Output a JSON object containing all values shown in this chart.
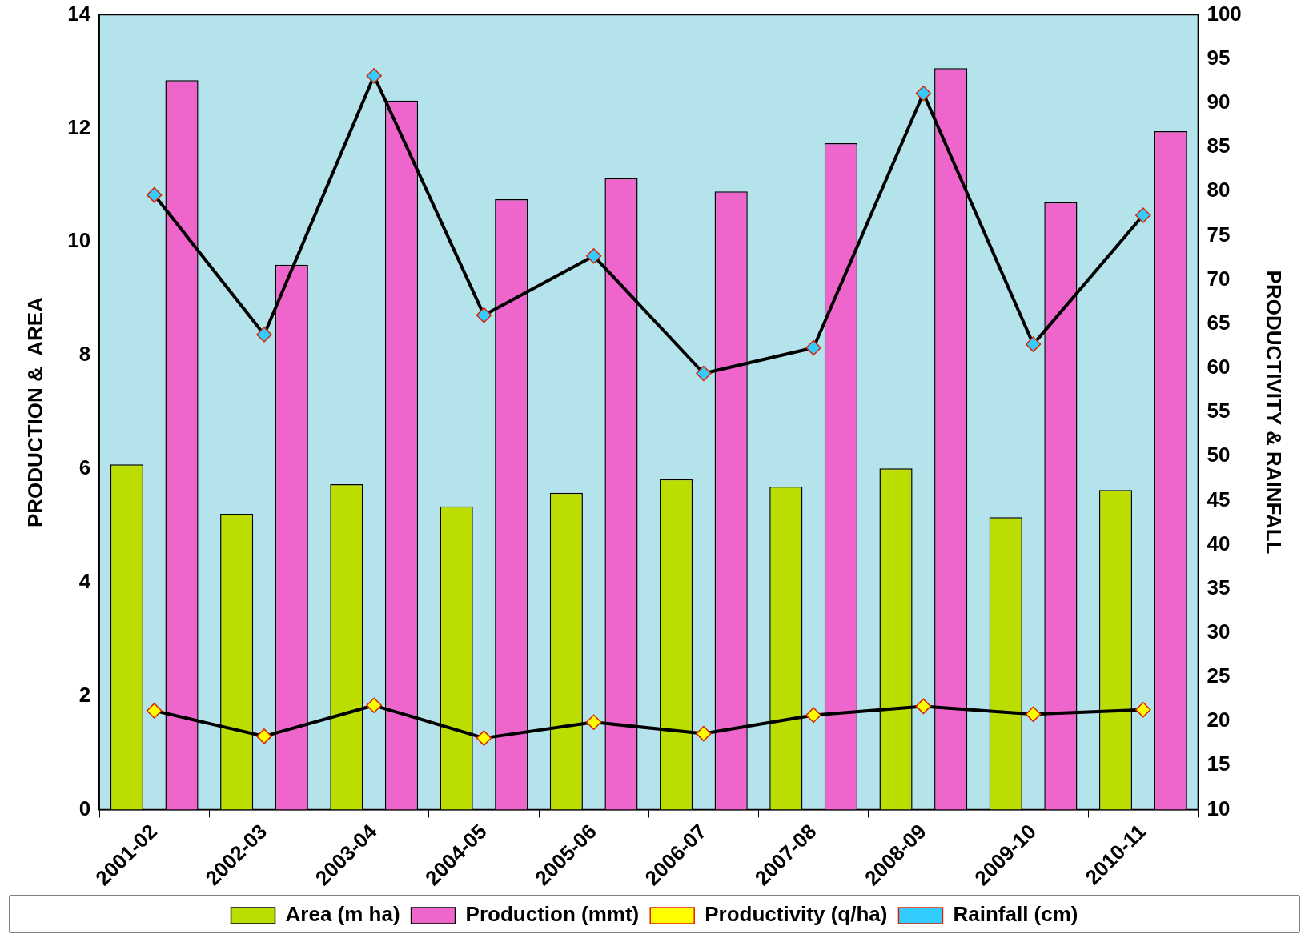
{
  "chart_data": {
    "type": "bar",
    "ylabel": "PRODUCTION &  AREA",
    "y2label": "PRODUCTIVITY & RAINFALL",
    "categories": [
      "2001-02",
      "2002-03",
      "2003-04",
      "2004-05",
      "2005-06",
      "2006-07",
      "2007-08",
      "2008-09",
      "2009-10",
      "2010-11"
    ],
    "series": [
      {
        "name": "Area (m ha)",
        "color": "#bbdd00",
        "values": [
          6.08,
          5.21,
          5.73,
          5.34,
          5.58,
          5.82,
          5.69,
          6.01,
          5.15,
          5.63
        ]
      },
      {
        "name": "Production (mmt)",
        "color": "#ee66cc",
        "values": [
          12.85,
          9.6,
          12.49,
          10.75,
          11.12,
          10.89,
          11.74,
          13.06,
          10.7,
          11.95
        ]
      },
      {
        "name": "Productivity (q/ha)",
        "type": "line",
        "axis": "y2",
        "color": "#ffff00",
        "marker": "diamond",
        "values": [
          21.2,
          18.3,
          21.8,
          18.1,
          19.9,
          18.6,
          20.7,
          21.7,
          20.8,
          21.3
        ]
      },
      {
        "name": "Rainfall (cm)",
        "type": "line",
        "axis": "y2",
        "color": "#33ccff",
        "marker": "diamond",
        "values": [
          79.6,
          63.8,
          93.1,
          66.0,
          72.7,
          59.4,
          62.3,
          91.1,
          62.7,
          77.3
        ]
      }
    ],
    "ylim": [
      0,
      14
    ],
    "yticks": [
      0,
      2,
      4,
      6,
      8,
      10,
      12,
      14
    ],
    "y2lim": [
      10,
      100
    ],
    "y2ticks": [
      10,
      15,
      20,
      25,
      30,
      35,
      40,
      45,
      50,
      55,
      60,
      65,
      70,
      75,
      80,
      85,
      90,
      95,
      100
    ],
    "legend": "bottom",
    "grid": false
  }
}
